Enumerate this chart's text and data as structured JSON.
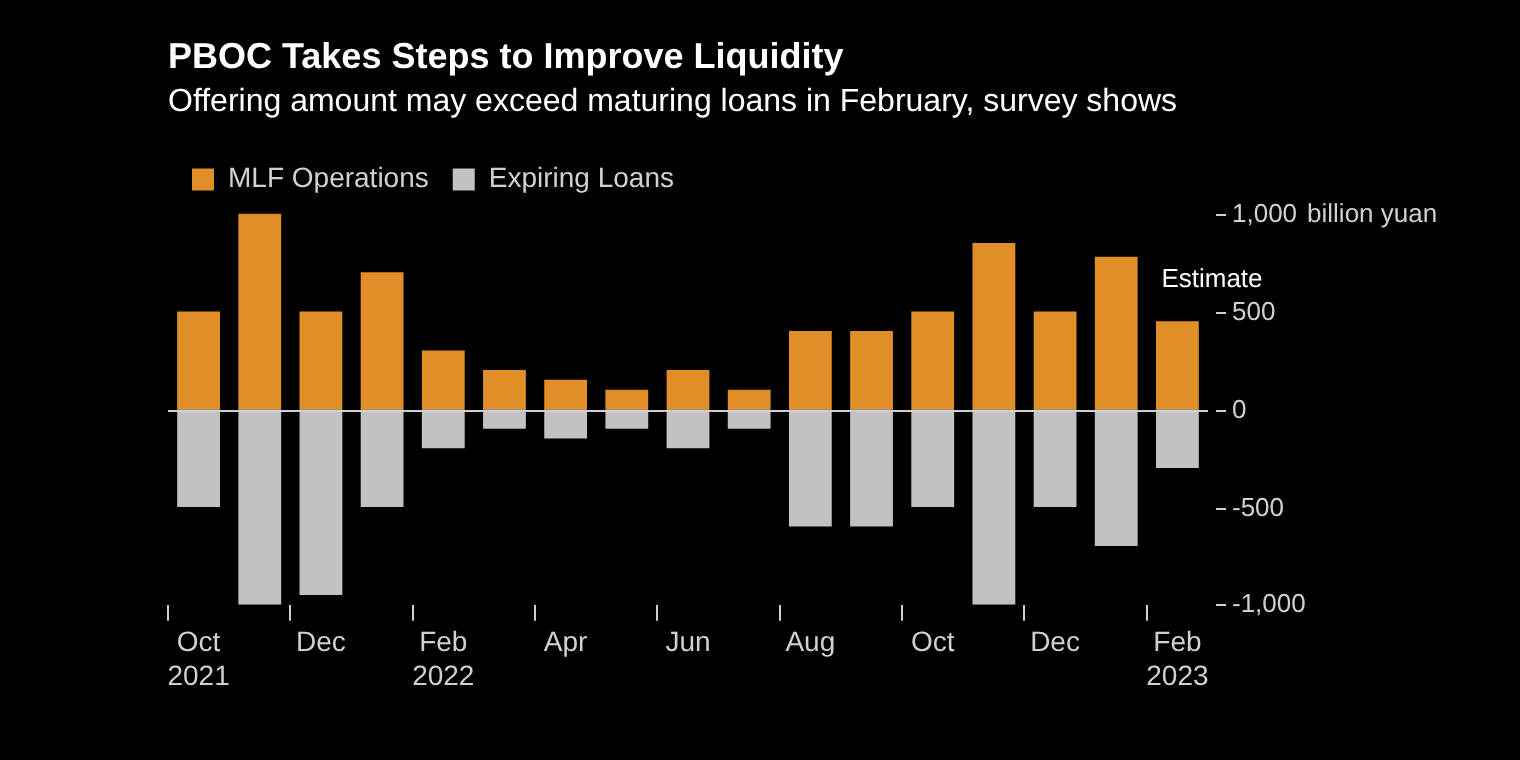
{
  "chart_data": {
    "type": "bar",
    "title": "PBOC Takes Steps to Improve Liquidity",
    "subtitle": "Offering amount may exceed maturing loans in February, survey shows",
    "ylabel": "billion yuan",
    "categories": [
      "Oct 2021",
      null,
      "Dec",
      null,
      "Feb 2022",
      null,
      "Apr",
      null,
      "Jun",
      null,
      "Aug",
      null,
      "Oct",
      null,
      "Dec",
      null,
      "Feb 2023"
    ],
    "series": [
      {
        "name": "MLF Operations",
        "color": "#e08e27",
        "values": [
          500,
          1000,
          500,
          700,
          300,
          200,
          150,
          100,
          200,
          100,
          400,
          400,
          500,
          850,
          500,
          780,
          450
        ]
      },
      {
        "name": "Expiring Loans",
        "color": "#c2c2c2",
        "values": [
          -500,
          -1000,
          -950,
          -500,
          -200,
          -100,
          -150,
          -100,
          -200,
          -100,
          -600,
          -600,
          -500,
          -1000,
          -500,
          -700,
          -300
        ]
      }
    ],
    "stacked": true,
    "ylim": [
      -1000,
      1000
    ],
    "yticks": [
      {
        "value": -1000,
        "label": "-1,000"
      },
      -500,
      0,
      500,
      {
        "value": 1000,
        "label": "1,000"
      }
    ],
    "grid": false,
    "legend": "top left",
    "ref_lines": [
      {
        "axis": "y",
        "value": 0,
        "color": "#cfcfcf"
      }
    ],
    "annotations": [
      "Estimate"
    ]
  }
}
